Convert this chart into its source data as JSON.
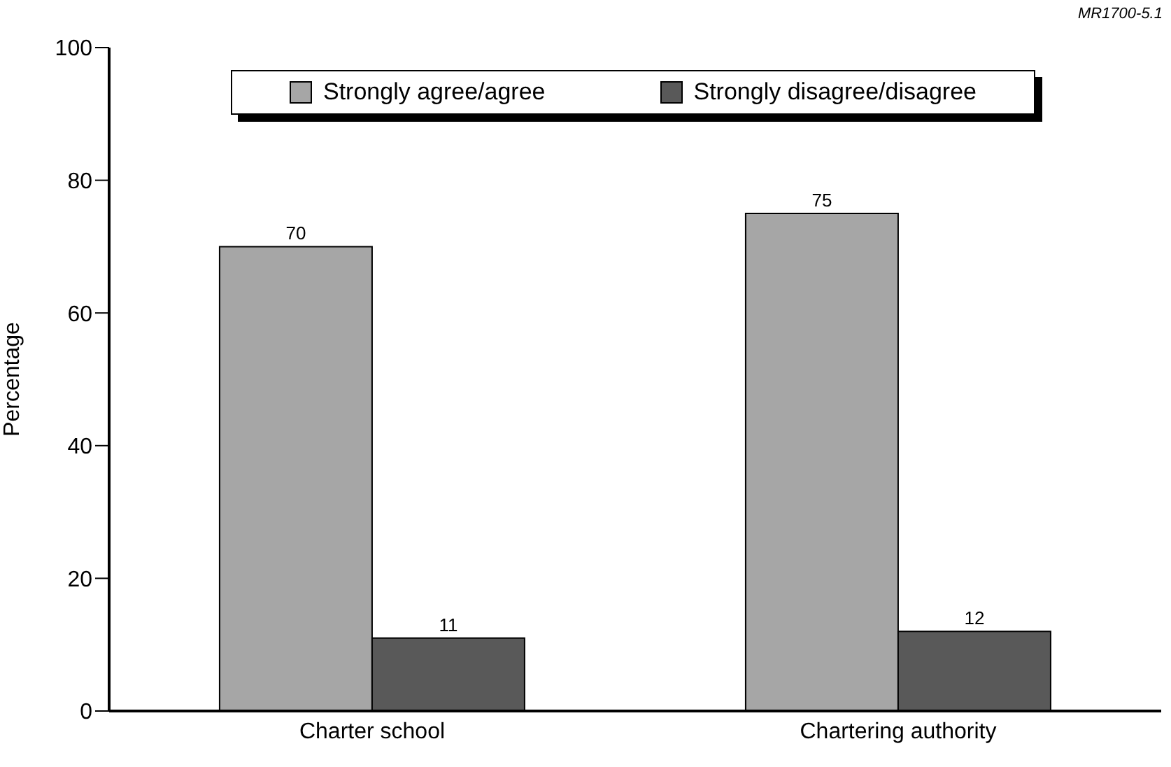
{
  "chart_data": {
    "type": "bar",
    "categories": [
      "Charter school",
      "Chartering authority"
    ],
    "series": [
      {
        "name": "Strongly agree/agree",
        "color": "#a6a6a6",
        "values": [
          70,
          75
        ]
      },
      {
        "name": "Strongly disagree/disagree",
        "color": "#595959",
        "values": [
          11,
          12
        ]
      }
    ],
    "ylabel": "Percentage",
    "ylim": [
      0,
      100
    ],
    "yticks": [
      0,
      20,
      40,
      60,
      80,
      100
    ],
    "legend": "top",
    "data_labels": true,
    "annotations": [
      "MR1700-5.1"
    ]
  }
}
